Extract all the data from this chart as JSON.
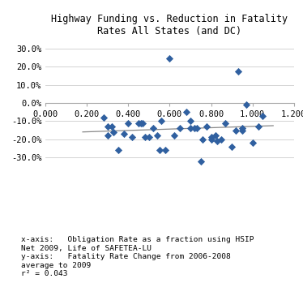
{
  "title": "Highway Funding vs. Reduction in Fatality\nRates All States (and DC)",
  "x_points": [
    0.28,
    0.3,
    0.3,
    0.32,
    0.33,
    0.35,
    0.38,
    0.4,
    0.42,
    0.45,
    0.46,
    0.47,
    0.48,
    0.5,
    0.52,
    0.54,
    0.55,
    0.56,
    0.58,
    0.6,
    0.62,
    0.65,
    0.68,
    0.7,
    0.7,
    0.72,
    0.73,
    0.75,
    0.76,
    0.78,
    0.8,
    0.8,
    0.82,
    0.83,
    0.85,
    0.87,
    0.9,
    0.92,
    0.93,
    0.95,
    0.95,
    0.97,
    1.0,
    1.03,
    1.05
  ],
  "y_points": [
    -0.08,
    -0.13,
    -0.18,
    -0.13,
    -0.16,
    -0.26,
    -0.17,
    -0.11,
    -0.19,
    -0.11,
    -0.11,
    -0.11,
    -0.19,
    -0.19,
    -0.14,
    -0.18,
    -0.26,
    -0.1,
    -0.26,
    0.245,
    -0.18,
    -0.14,
    -0.05,
    -0.1,
    -0.14,
    -0.14,
    -0.14,
    -0.32,
    -0.2,
    -0.13,
    -0.2,
    -0.19,
    -0.18,
    -0.21,
    -0.2,
    -0.11,
    -0.24,
    -0.15,
    0.175,
    -0.14,
    -0.15,
    -0.01,
    -0.22,
    -0.13,
    -0.07
  ],
  "marker_color": "#3060A0",
  "marker_size": 22,
  "xlim": [
    0.0,
    1.2
  ],
  "ylim": [
    -0.4,
    0.35
  ],
  "xticks": [
    0.0,
    0.2,
    0.4,
    0.6,
    0.8,
    1.0,
    1.2
  ],
  "yticks": [
    -0.3,
    -0.2,
    -0.1,
    0.0,
    0.1,
    0.2,
    0.3
  ],
  "xlabel_note": "x-axis:   Obligation Rate as a fraction using HSIP\nNet 2009, Life of SAFETEA-LU\ny-axis:   Fatality Rate Change from 2006-2008\naverage to 2009\nr² = 0.043",
  "trendline_color": "#888888",
  "background_color": "#ffffff",
  "grid_color": "#cccccc",
  "font_family": "monospace",
  "title_fontsize": 8.5,
  "tick_fontsize": 7.5,
  "note_fontsize": 6.8
}
